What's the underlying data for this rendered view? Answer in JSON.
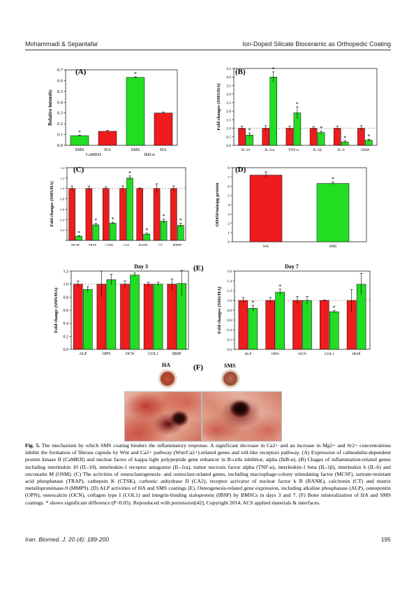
{
  "header": {
    "left": "Mohammadi & Sepantafar",
    "right": "Ion-Doped Silicate Bioceramic as Orthopedic Coating"
  },
  "footer": {
    "left": "Iran. Biomed. J. 20 (4): 189-200",
    "right": "195"
  },
  "colors": {
    "ha": "#ee1c1c",
    "sms": "#22dd22"
  },
  "panels": {
    "A": {
      "label": "(A)"
    },
    "B": {
      "label": "(B)"
    },
    "C": {
      "label": "(C)"
    },
    "D": {
      "label": "(D)"
    },
    "E": {
      "label": "(E)",
      "left_title": "Day 3",
      "right_title": "Day 7"
    },
    "F": {
      "label": "(F)",
      "ha": "HA",
      "sms": "SMS"
    }
  },
  "chart_data": [
    {
      "id": "A",
      "type": "bar",
      "ylabel": "Relative intensity",
      "ylim": [
        0,
        0.7
      ],
      "yticks": [
        "0.0",
        "0.1",
        "0.2",
        "0.3",
        "0.4",
        "0.5",
        "0.6",
        "0.7"
      ],
      "categories": [
        "SMS",
        "HA",
        "SMS",
        "HA"
      ],
      "groups": [
        "CaMKII",
        "IkB-α"
      ],
      "values": [
        0.09,
        0.13,
        0.63,
        0.3
      ],
      "errors": [
        0.005,
        0.01,
        0.005,
        0.01
      ],
      "colors": [
        "sms",
        "ha",
        "sms",
        "ha"
      ],
      "significant": [
        true,
        false,
        true,
        false
      ]
    },
    {
      "id": "B",
      "type": "bar",
      "ylabel": "Fold changes (SMS/HA)",
      "ylim": [
        0,
        4.5
      ],
      "yticks": [
        "0.0",
        "0.5",
        "1.0",
        "1.5",
        "2.0",
        "2.5",
        "3.0",
        "3.5",
        "4.0",
        "4.5"
      ],
      "categories": [
        "IL-10",
        "IL-1ra",
        "TNF-α",
        "IL-1β",
        "IL-6",
        "OSM"
      ],
      "series": [
        {
          "name": "HA",
          "values": [
            1.0,
            1.0,
            1.0,
            1.0,
            1.0,
            1.0
          ],
          "errors": [
            0.12,
            0.15,
            0.12,
            0.1,
            0.12,
            0.15
          ]
        },
        {
          "name": "SMS",
          "values": [
            0.6,
            4.0,
            1.9,
            0.75,
            0.2,
            0.3
          ],
          "errors": [
            0.12,
            0.3,
            0.35,
            0.08,
            0.06,
            0.06
          ]
        }
      ],
      "significant": [
        true,
        true,
        true,
        true,
        true,
        true
      ]
    },
    {
      "id": "C",
      "type": "bar",
      "ylabel": "Fold changes (SMS/HA)",
      "ylim": [
        0,
        1.4
      ],
      "yticks": [
        "",
        "0.2",
        "0.4",
        "0.6",
        "0.8",
        "1.0",
        "1.2",
        "1.4"
      ],
      "categories": [
        "MCSF",
        "TRAP",
        "CTSK",
        "CA2",
        "RANK",
        "CT",
        "MMP9"
      ],
      "series": [
        {
          "name": "HA",
          "values": [
            1.0,
            1.0,
            1.0,
            1.0,
            1.0,
            1.0,
            1.0
          ],
          "errors": [
            0.04,
            0.04,
            0.03,
            0.05,
            0.01,
            0.09,
            0.05
          ]
        },
        {
          "name": "SMS",
          "values": [
            0.08,
            0.3,
            0.33,
            1.2,
            0.12,
            0.37,
            0.29
          ],
          "errors": [
            0.01,
            0.03,
            0.02,
            0.04,
            0.02,
            0.04,
            0.04
          ]
        }
      ],
      "significant": [
        true,
        true,
        true,
        true,
        true,
        true,
        true
      ]
    },
    {
      "id": "D",
      "type": "bar",
      "ylabel": "OD450/min/µg protein",
      "ylim": [
        0,
        8
      ],
      "yticks": [
        "0",
        "1",
        "2",
        "3",
        "4",
        "5",
        "6",
        "7",
        "8"
      ],
      "categories": [
        "HA",
        "SMS"
      ],
      "values": [
        7.2,
        6.3
      ],
      "errors": [
        0.35,
        0.15
      ],
      "colors": [
        "ha",
        "sms"
      ],
      "significant": [
        false,
        true
      ]
    },
    {
      "id": "E3",
      "type": "bar",
      "title": "Day 3",
      "ylabel": "Fold change (SMS/HA)",
      "ylim": [
        0,
        1.2
      ],
      "yticks": [
        "0.0",
        "0.2",
        "0.4",
        "0.6",
        "0.8",
        "1.0",
        "1.2"
      ],
      "categories": [
        "ALP",
        "OPN",
        "OCN",
        "COL1",
        "IBSP"
      ],
      "series": [
        {
          "name": "HA",
          "values": [
            1.0,
            1.0,
            1.0,
            1.0,
            1.0
          ],
          "errors": [
            0.05,
            0.2,
            0.05,
            0.03,
            0.08
          ]
        },
        {
          "name": "SMS",
          "values": [
            0.92,
            1.07,
            1.14,
            1.0,
            1.01
          ],
          "errors": [
            0.04,
            0.08,
            0.03,
            0.03,
            0.2
          ]
        }
      ],
      "significant": [
        false,
        false,
        false,
        false,
        false
      ]
    },
    {
      "id": "E7",
      "type": "bar",
      "title": "Day 7",
      "ylabel": "Fold changes (SMS/HA)",
      "ylim": [
        0,
        1.6
      ],
      "yticks": [
        "0.0",
        "0.2",
        "0.4",
        "0.6",
        "0.8",
        "1.0",
        "1.2",
        "1.4",
        "1.6"
      ],
      "categories": [
        "ALP",
        "OPN",
        "OCN",
        "COL1",
        "IBSP"
      ],
      "series": [
        {
          "name": "HA",
          "values": [
            1.0,
            1.0,
            1.0,
            1.0,
            1.0
          ],
          "errors": [
            0.06,
            0.06,
            0.08,
            0.01,
            0.22
          ]
        },
        {
          "name": "SMS",
          "values": [
            0.84,
            1.17,
            1.0,
            0.77,
            1.33
          ],
          "errors": [
            0.06,
            0.06,
            0.08,
            0.02,
            0.22
          ]
        }
      ],
      "significant": [
        true,
        true,
        false,
        true,
        false
      ]
    }
  ],
  "caption": {
    "fig": "Fig. 5.",
    "text": "The mechanism by which SMS coating hinders the inflammatory response. A significant decrease in Ca2+ and an increase in Mg2+ and Sr2+ concentrations inhibit the formation of fibrous capsule by Wnt and Ca2+ pathway (Wnt/Ca2+)-related genes and toll-like receptors pathway. (A) Expression of calmodulin-dependent protein kinase II (CaMKII) and nuclear factor of kappa light polypeptide gene enhancer in B-cells inhibitor, alpha (IkB-α). (B) Chages of inflammation-related genes including interleukin 10 (IL-10), interleukin-1 receptor antagonist (IL-1ra), tumor necrosis factor alpha (TNF-α), interleukin-1 beta (IL-1β), interleukin 6 (IL-6) and oncostatin M (OSM). (C) The activities of osteoclastogenesis- and osteoclast-related genes, including macrophage-colony stimulating factor (MCSF), tartrate-resistant acid phosphatase (TRAP), cathepsin K (CTSK), carbonic anhydrase II (CA2), receptor activator of nuclear factor k B (RANK), calcitonin (CT) and matrix metalloproteinase-9 (MMP9). (D) ALP activities of HA and SMS coatings (E). Osteogenesis-related gene expression, including alkaline phosphatase (ALP), osteopontin (OPN), osteocalcin (OCN), collagen type I (COL1) and integrin-binding sialoprotein (IBSP) by BMSCs in days 3 and 7. (F) Bone mineralization of HA and SMS coatings. * shows significant difference (P<0.05). Reproduced with permission[42], Copyright 2014, ACS applied materials & interfaces."
  }
}
